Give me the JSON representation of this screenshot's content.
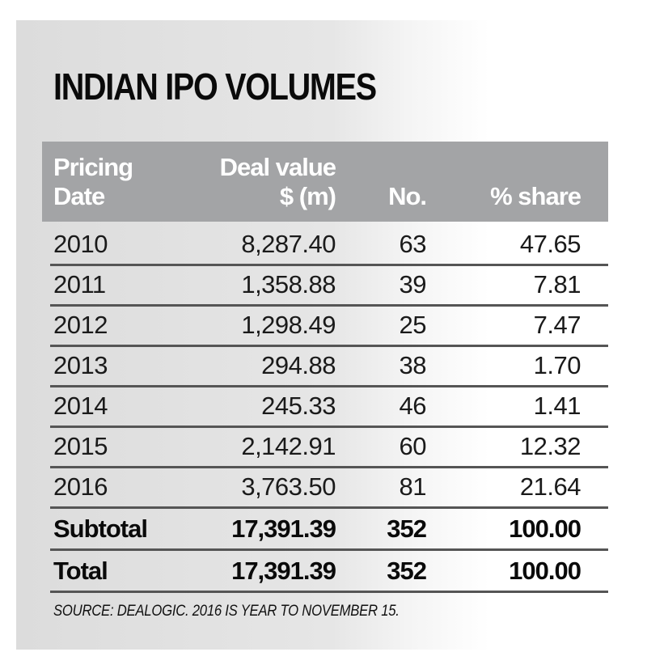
{
  "chart_data": {
    "type": "table",
    "title": "INDIAN IPO VOLUMES",
    "columns": [
      {
        "line1": "Pricing",
        "line2": "Date"
      },
      {
        "line1": "Deal value",
        "line2": "$ (m)"
      },
      {
        "line1": "",
        "line2": "No."
      },
      {
        "line1": "",
        "line2": "% share"
      }
    ],
    "rows": [
      {
        "label": "2010",
        "deal_value": "8,287.40",
        "no": "63",
        "share": "47.65"
      },
      {
        "label": "2011",
        "deal_value": "1,358.88",
        "no": "39",
        "share": "7.81"
      },
      {
        "label": "2012",
        "deal_value": "1,298.49",
        "no": "25",
        "share": "7.47"
      },
      {
        "label": "2013",
        "deal_value": "294.88",
        "no": "38",
        "share": "1.70"
      },
      {
        "label": "2014",
        "deal_value": "245.33",
        "no": "46",
        "share": "1.41"
      },
      {
        "label": "2015",
        "deal_value": "2,142.91",
        "no": "60",
        "share": "12.32"
      },
      {
        "label": "2016",
        "deal_value": "3,763.50",
        "no": "81",
        "share": "21.64"
      },
      {
        "label": "Subtotal",
        "deal_value": "17,391.39",
        "no": "352",
        "share": "100.00",
        "bold": true
      },
      {
        "label": "Total",
        "deal_value": "17,391.39",
        "no": "352",
        "share": "100.00",
        "bold": true
      }
    ],
    "source": "SOURCE: DEALOGIC. 2016 IS YEAR TO NOVEMBER 15."
  },
  "colors": {
    "header_bg": "#a3a4a6",
    "rule": "#555555"
  }
}
